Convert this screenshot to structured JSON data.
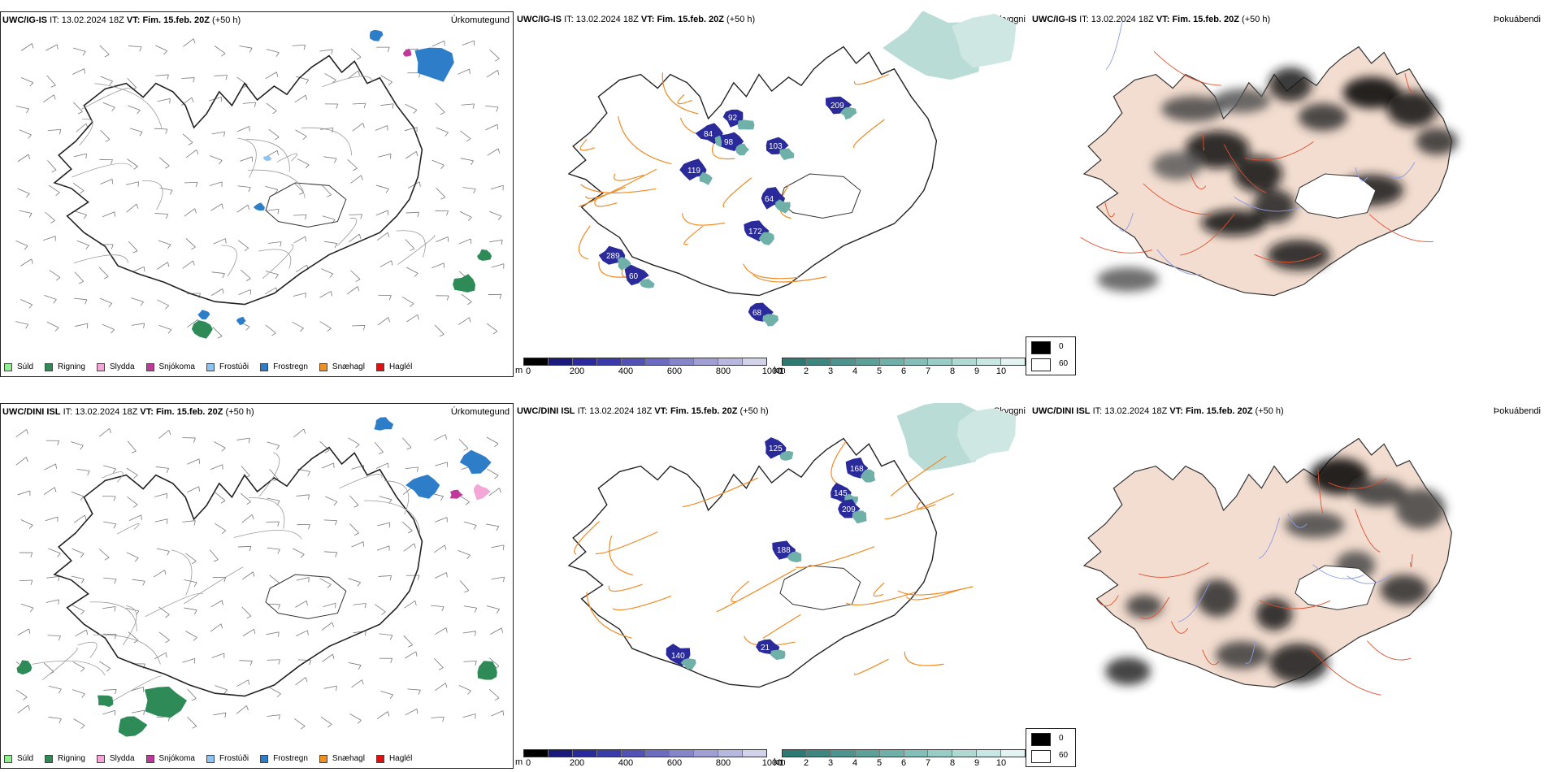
{
  "rows": [
    {
      "model": "UWC/IG-IS",
      "it_label": "IT:",
      "it_value": "13.02.2024 18Z",
      "vt_label": "VT:",
      "vt_value": "Fim. 15.feb. 20Z",
      "lead": "(+50 h)",
      "products": [
        "Úrkomutegund",
        "Skyggni",
        "Þokuábendi"
      ],
      "cloud_labels": [
        "289",
        "119",
        "84",
        "98",
        "103",
        "60",
        "64",
        "172",
        "68",
        "209",
        "92"
      ]
    },
    {
      "model": "UWC/DINI ISL",
      "it_label": "IT:",
      "it_value": "13.02.2024 18Z",
      "vt_label": "VT:",
      "vt_value": "Fim. 15.feb. 20Z",
      "lead": "(+50 h)",
      "products": [
        "Úrkomutegund",
        "Skyggni",
        "Þokuábendi"
      ],
      "cloud_labels": [
        "125",
        "145",
        "168",
        "209",
        "188",
        "21",
        "140"
      ]
    }
  ],
  "precip_legend": [
    {
      "label": "Súld",
      "color": "#90ee90"
    },
    {
      "label": "Rigning",
      "color": "#2e8b57"
    },
    {
      "label": "Slydda",
      "color": "#f4a6d7"
    },
    {
      "label": "Snjókoma",
      "color": "#c0399a"
    },
    {
      "label": "Frostúði",
      "color": "#8ec2f0"
    },
    {
      "label": "Frostregn",
      "color": "#2e7dc8"
    },
    {
      "label": "Snæhagl",
      "color": "#f0901e"
    },
    {
      "label": "Haglél",
      "color": "#e01010"
    }
  ],
  "ceiling_scale": {
    "unit": "m",
    "labels": [
      "0",
      "200",
      "400",
      "600",
      "800",
      "1000"
    ],
    "colors": [
      "#000000",
      "#1a1a7a",
      "#2a2a9a",
      "#3a3aa8",
      "#5252b4",
      "#6b6bbf",
      "#8585c9",
      "#9f9fd4",
      "#b8b8df",
      "#d2d2ea"
    ]
  },
  "vis_scale": {
    "unit": "km",
    "labels": [
      "1",
      "2",
      "3",
      "4",
      "5",
      "6",
      "7",
      "8",
      "9",
      "10"
    ],
    "colors": [
      "#2e7a73",
      "#3d8780",
      "#4c948d",
      "#5ba19a",
      "#6fb0a9",
      "#84beb8",
      "#99ccc6",
      "#b0d9d4",
      "#c8e6e2",
      "#e2f3f1"
    ]
  },
  "fog_legend": [
    {
      "label": "0",
      "color": "#000000"
    },
    {
      "label": "60",
      "color": "#ffffff"
    }
  ]
}
